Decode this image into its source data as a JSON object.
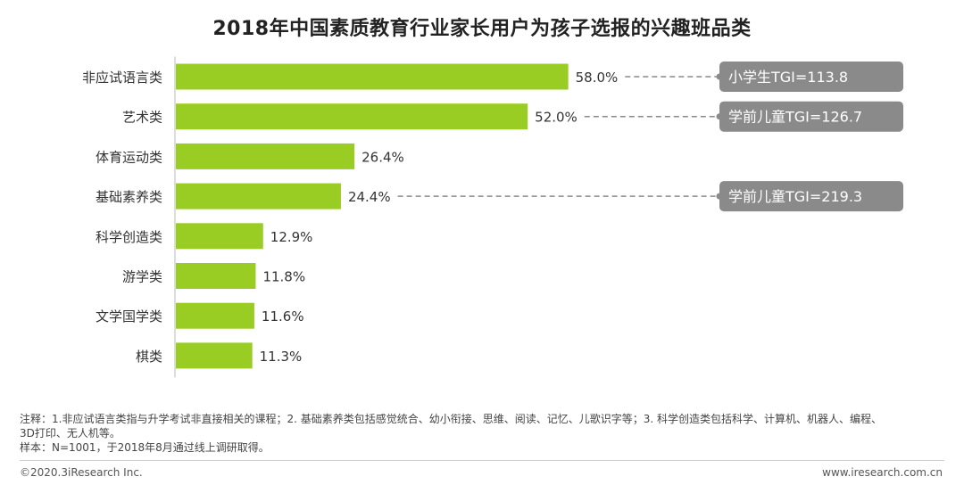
{
  "colors": {
    "bar": "#9ACD23",
    "callout_bg": "#8A8A8A",
    "callout_text": "#ffffff",
    "dash": "#8A8A8A",
    "axis": "#BBBBBB"
  },
  "notes": {
    "line1": "注释：1.非应试语言类指与升学考试非直接相关的课程；2. 基础素养类包括感觉统合、幼小衔接、思维、阅读、记忆、儿歌识字等；3. 科学创造类包括科学、计算机、机器人、编程、",
    "line2": "3D打印、无人机等。",
    "line3": "样本：N=1001，于2018年8月通过线上调研取得。"
  },
  "footer": {
    "copyright": "©2020.3iResearch Inc.",
    "website": "www.iresearch.com.cn"
  },
  "chart_data": {
    "type": "bar",
    "orientation": "horizontal",
    "title": "2018年中国素质教育行业家长用户为孩子选报的兴趣班品类",
    "categories": [
      "非应试语言类",
      "艺术类",
      "体育运动类",
      "基础素养类",
      "科学创造类",
      "游学类",
      "文学国学类",
      "棋类"
    ],
    "values": [
      58.0,
      52.0,
      26.4,
      24.4,
      12.9,
      11.8,
      11.6,
      11.3
    ],
    "value_labels": [
      "58.0%",
      "52.0%",
      "26.4%",
      "24.4%",
      "12.9%",
      "11.8%",
      "11.6%",
      "11.3%"
    ],
    "xlim": [
      0,
      100
    ],
    "grid": false,
    "annotations": [
      {
        "category_index": 0,
        "text": "小学生TGI=113.8"
      },
      {
        "category_index": 1,
        "text": "学前儿童TGI=126.7"
      },
      {
        "category_index": 3,
        "text": "学前儿童TGI=219.3"
      }
    ]
  }
}
